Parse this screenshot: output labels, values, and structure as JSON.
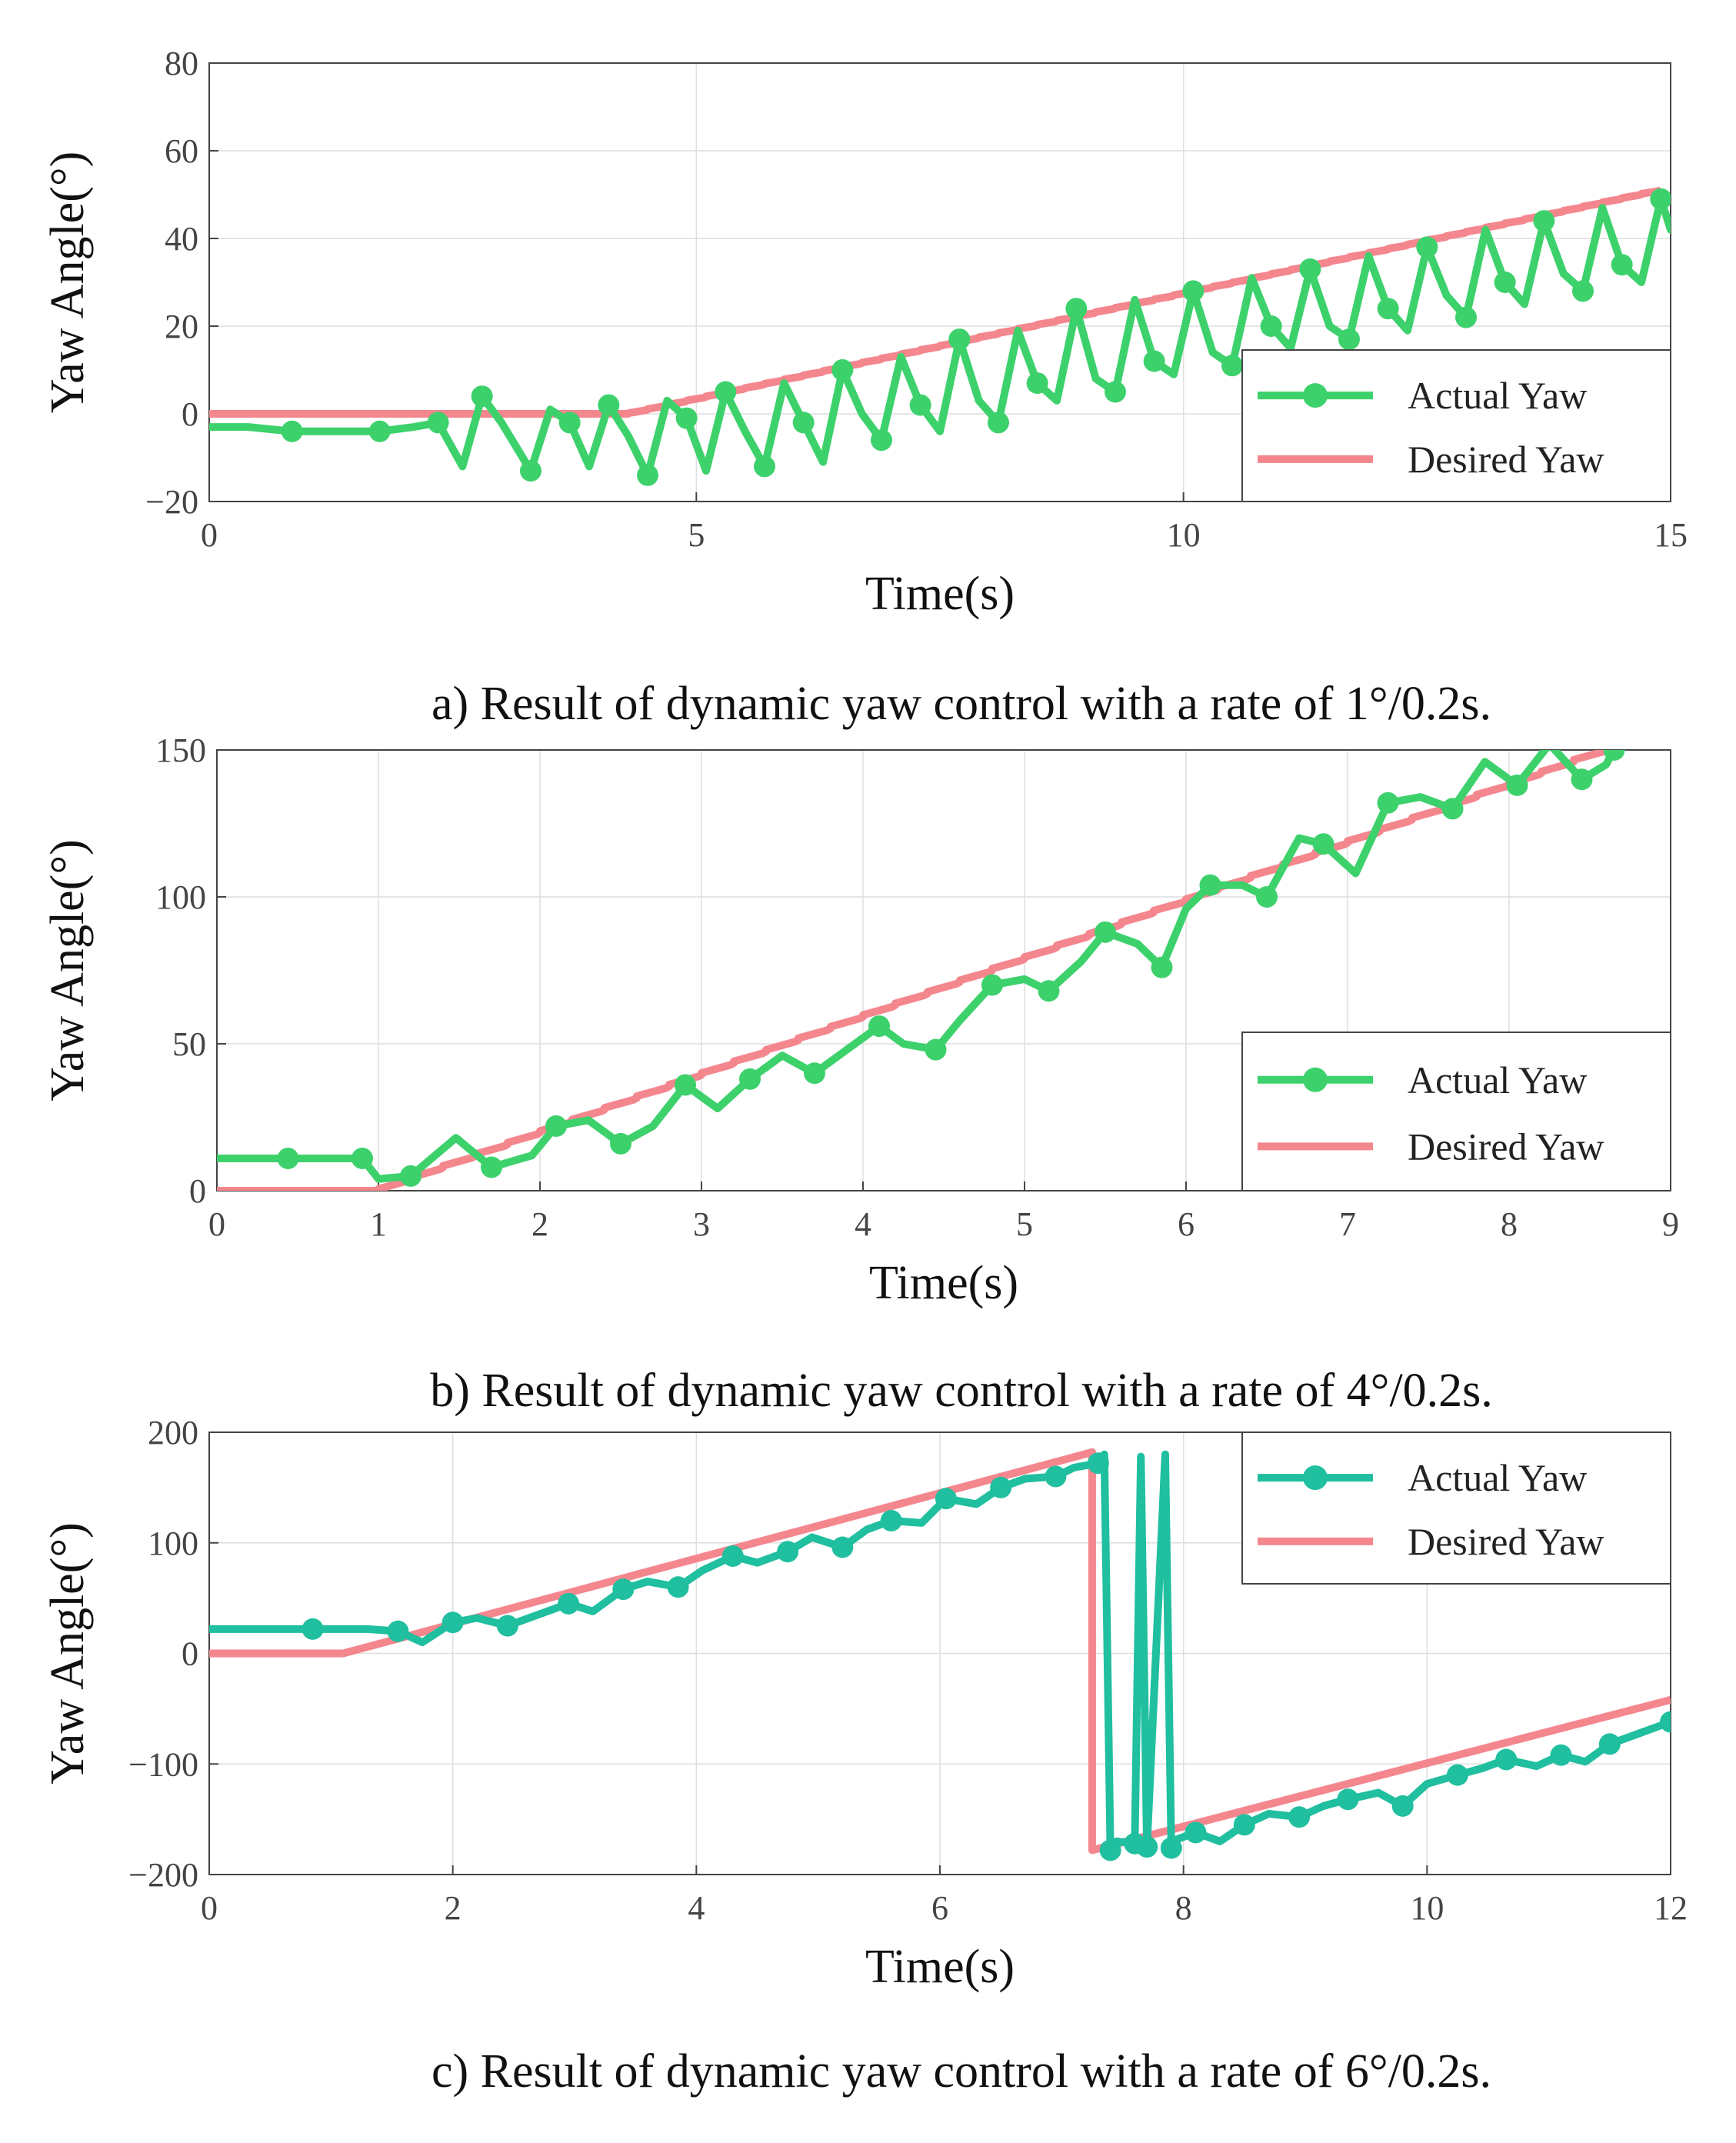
{
  "figure": {
    "captions": [
      "a) Result of dynamic yaw control with a rate of  1°/0.2s.",
      "b) Result of dynamic yaw control with a rate of 4°/0.2s.",
      "c) Result of dynamic yaw control with a rate of 6°/0.2s."
    ]
  },
  "chart_data": [
    {
      "type": "line",
      "title": "a) Result of dynamic yaw control with a rate of  1°/0.2s.",
      "xlabel": "Time(s)",
      "ylabel": "Yaw Angle(°)",
      "xlim": [
        0,
        15
      ],
      "ylim": [
        -20,
        80
      ],
      "xticks": [
        0,
        5,
        10,
        15
      ],
      "yticks": [
        -20,
        0,
        20,
        40,
        60,
        80
      ],
      "legend": [
        "Actual Yaw",
        "Desired Yaw"
      ],
      "legend_position": "bottom-right",
      "colors": {
        "actual": "#3dd16c",
        "desired": "#f4868e"
      },
      "series": [
        {
          "name": "Desired Yaw",
          "style": "step",
          "x": [
            0,
            4.3,
            15
          ],
          "y": [
            0,
            0,
            51
          ]
        },
        {
          "name": "Actual Yaw",
          "style": "line-markers",
          "x": [
            0,
            0.4,
            0.85,
            1.3,
            1.75,
            2.1,
            2.35,
            2.6,
            2.8,
            3.0,
            3.3,
            3.5,
            3.7,
            3.9,
            4.1,
            4.3,
            4.5,
            4.7,
            4.9,
            5.1,
            5.3,
            5.5,
            5.7,
            5.9,
            6.1,
            6.3,
            6.5,
            6.7,
            6.9,
            7.1,
            7.3,
            7.5,
            7.7,
            7.9,
            8.1,
            8.3,
            8.5,
            8.7,
            8.9,
            9.1,
            9.3,
            9.5,
            9.7,
            9.9,
            10.1,
            10.3,
            10.5,
            10.7,
            10.9,
            11.1,
            11.3,
            11.5,
            11.7,
            11.9,
            12.1,
            12.3,
            12.5,
            12.7,
            12.9,
            13.1,
            13.3,
            13.5,
            13.7,
            13.9,
            14.1,
            14.3,
            14.5,
            14.7,
            14.9,
            15
          ],
          "y": [
            -3,
            -3,
            -4,
            -4,
            -4,
            -3,
            -2,
            -12,
            4,
            -2,
            -13,
            1,
            -2,
            -12,
            2,
            -5,
            -14,
            3,
            -1,
            -13,
            5,
            -4,
            -12,
            7,
            -2,
            -11,
            10,
            0,
            -6,
            13,
            2,
            -4,
            17,
            3,
            -2,
            19,
            7,
            3,
            24,
            8,
            5,
            26,
            12,
            9,
            28,
            14,
            11,
            31,
            20,
            15,
            33,
            20,
            17,
            36,
            24,
            19,
            38,
            27,
            22,
            42,
            30,
            25,
            44,
            32,
            28,
            47,
            34,
            30,
            49,
            42
          ]
        }
      ]
    },
    {
      "type": "line",
      "title": "b) Result of dynamic yaw control with a rate of 4°/0.2s.",
      "xlabel": "Time(s)",
      "ylabel": "Yaw Angle(°)",
      "xlim": [
        0,
        9
      ],
      "ylim": [
        0,
        150
      ],
      "xticks": [
        0,
        1,
        2,
        3,
        4,
        5,
        6,
        7,
        8,
        9
      ],
      "yticks": [
        0,
        50,
        100,
        150
      ],
      "legend": [
        "Actual Yaw",
        "Desired Yaw"
      ],
      "legend_position": "bottom-right",
      "colors": {
        "actual": "#3dd16c",
        "desired": "#f4868e"
      },
      "series": [
        {
          "name": "Desired Yaw",
          "style": "step",
          "x": [
            0,
            1.0,
            8.7
          ],
          "y": [
            0,
            0,
            150
          ]
        },
        {
          "name": "Actual Yaw",
          "style": "line-markers",
          "x": [
            0,
            0.22,
            0.44,
            0.66,
            0.9,
            1.0,
            1.2,
            1.48,
            1.7,
            1.95,
            2.1,
            2.3,
            2.5,
            2.7,
            2.9,
            3.1,
            3.3,
            3.5,
            3.7,
            3.9,
            4.1,
            4.25,
            4.45,
            4.6,
            4.8,
            5.0,
            5.15,
            5.35,
            5.5,
            5.7,
            5.85,
            6.0,
            6.15,
            6.35,
            6.5,
            6.7,
            6.85,
            7.05,
            7.25,
            7.45,
            7.65,
            7.85,
            8.05,
            8.25,
            8.45,
            8.6,
            8.65
          ],
          "y": [
            11,
            11,
            11,
            11,
            11,
            4,
            5,
            18,
            8,
            12,
            22,
            24,
            16,
            22,
            36,
            28,
            38,
            46,
            40,
            48,
            56,
            50,
            48,
            58,
            70,
            72,
            68,
            78,
            88,
            84,
            76,
            96,
            104,
            104,
            100,
            120,
            118,
            108,
            132,
            134,
            130,
            146,
            138,
            152,
            140,
            145,
            150
          ]
        }
      ]
    },
    {
      "type": "line",
      "title": "c) Result of dynamic yaw control with a rate of 6°/0.2s.",
      "xlabel": "Time(s)",
      "ylabel": "Yaw Angle(°)",
      "xlim": [
        0,
        12
      ],
      "ylim": [
        -200,
        200
      ],
      "xticks": [
        0,
        2,
        4,
        6,
        8,
        10,
        12
      ],
      "yticks": [
        -200,
        -100,
        0,
        100,
        200
      ],
      "legend": [
        "Actual Yaw",
        "Desired Yaw"
      ],
      "legend_position": "top-right",
      "colors": {
        "actual": "#1fbf9f",
        "desired": "#f4868e"
      },
      "series": [
        {
          "name": "Desired Yaw",
          "style": "line",
          "x": [
            0,
            1.1,
            7.25,
            7.25,
            12
          ],
          "y": [
            0,
            0,
            182,
            -178,
            -42
          ]
        },
        {
          "name": "Actual Yaw",
          "style": "line-markers",
          "x": [
            0,
            0.4,
            0.85,
            1.3,
            1.55,
            1.75,
            2.0,
            2.2,
            2.45,
            2.7,
            2.95,
            3.15,
            3.4,
            3.6,
            3.85,
            4.05,
            4.3,
            4.5,
            4.75,
            4.95,
            5.2,
            5.4,
            5.6,
            5.85,
            6.05,
            6.3,
            6.5,
            6.7,
            6.95,
            7.1,
            7.3,
            7.35,
            7.4,
            7.45,
            7.6,
            7.65,
            7.7,
            7.85,
            7.9,
            7.95,
            8.1,
            8.3,
            8.5,
            8.7,
            8.95,
            9.15,
            9.35,
            9.6,
            9.8,
            10.0,
            10.25,
            10.45,
            10.65,
            10.9,
            11.1,
            11.3,
            11.5,
            11.75,
            12.0
          ],
          "y": [
            22,
            22,
            22,
            22,
            20,
            10,
            28,
            32,
            25,
            35,
            45,
            38,
            58,
            65,
            60,
            75,
            88,
            82,
            92,
            105,
            96,
            112,
            120,
            118,
            140,
            135,
            150,
            158,
            160,
            168,
            172,
            180,
            -178,
            -170,
            -172,
            178,
            -175,
            180,
            -176,
            -168,
            -162,
            -170,
            -155,
            -145,
            -148,
            -138,
            -132,
            -126,
            -138,
            -118,
            -110,
            -104,
            -96,
            -102,
            -92,
            -98,
            -82,
            -72,
            -62
          ]
        }
      ]
    }
  ]
}
